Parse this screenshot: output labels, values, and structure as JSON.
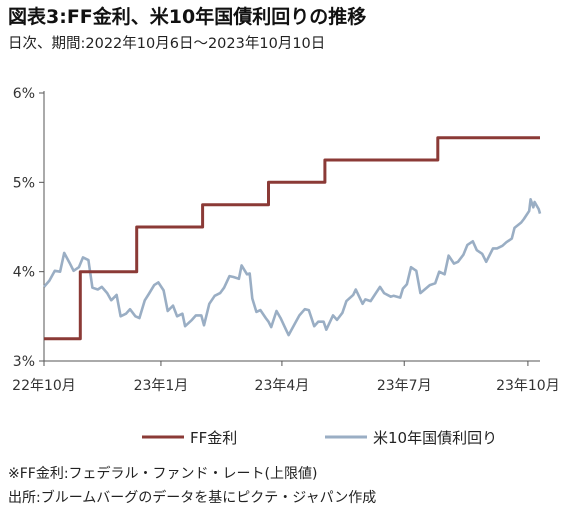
{
  "title": "図表3:FF金利、米10年国債利回りの推移",
  "subtitle": "日次、期間:2022年10月6日～2023年10月10日",
  "notes": [
    "※FF金利:フェデラル・ファンド・レート(上限値)",
    "出所:ブルームバーグのデータを基にピクテ・ジャパン作成"
  ],
  "chart_data": {
    "type": "line",
    "title": "図表3:FF金利、米10年国債利回りの推移",
    "subtitle": "日次、期間:2022年10月6日～2023年10月10日",
    "xlabel": "",
    "ylabel": "",
    "y_unit": "%",
    "ylim": [
      3,
      6
    ],
    "yticks": [
      3,
      4,
      5,
      6
    ],
    "ytick_labels": [
      "3%",
      "4%",
      "5%",
      "6%"
    ],
    "xlim": [
      "2022-10-06",
      "2023-10-10"
    ],
    "xticks": [
      "2022-10-01",
      "2023-01-01",
      "2023-04-01",
      "2023-07-01",
      "2023-10-01"
    ],
    "xtick_labels": [
      "22年10月",
      "23年1月",
      "23年4月",
      "23年7月",
      "23年10月"
    ],
    "grid": false,
    "legend": "bottom",
    "series": [
      {
        "name": "FF金利",
        "color": "#8b3a36",
        "step": true,
        "points": [
          [
            "2022-10-06",
            3.25
          ],
          [
            "2022-11-02",
            4.0
          ],
          [
            "2022-12-14",
            4.5
          ],
          [
            "2023-02-01",
            4.75
          ],
          [
            "2023-03-22",
            5.0
          ],
          [
            "2023-05-03",
            5.25
          ],
          [
            "2023-07-26",
            5.5
          ],
          [
            "2023-10-10",
            5.5
          ]
        ]
      },
      {
        "name": "米10年国債利回り",
        "color": "#9aaec4",
        "points": [
          [
            "2022-10-06",
            3.83
          ],
          [
            "2022-10-10",
            3.9
          ],
          [
            "2022-10-14",
            4.01
          ],
          [
            "2022-10-18",
            4.0
          ],
          [
            "2022-10-21",
            4.21
          ],
          [
            "2022-10-25",
            4.1
          ],
          [
            "2022-10-28",
            4.01
          ],
          [
            "2022-11-01",
            4.05
          ],
          [
            "2022-11-04",
            4.16
          ],
          [
            "2022-11-08",
            4.13
          ],
          [
            "2022-11-11",
            3.82
          ],
          [
            "2022-11-15",
            3.8
          ],
          [
            "2022-11-18",
            3.83
          ],
          [
            "2022-11-22",
            3.76
          ],
          [
            "2022-11-25",
            3.68
          ],
          [
            "2022-11-29",
            3.74
          ],
          [
            "2022-12-02",
            3.5
          ],
          [
            "2022-12-06",
            3.53
          ],
          [
            "2022-12-09",
            3.58
          ],
          [
            "2022-12-13",
            3.5
          ],
          [
            "2022-12-16",
            3.48
          ],
          [
            "2022-12-20",
            3.68
          ],
          [
            "2022-12-23",
            3.75
          ],
          [
            "2022-12-27",
            3.85
          ],
          [
            "2022-12-30",
            3.88
          ],
          [
            "2023-01-03",
            3.79
          ],
          [
            "2023-01-06",
            3.56
          ],
          [
            "2023-01-10",
            3.62
          ],
          [
            "2023-01-13",
            3.5
          ],
          [
            "2023-01-17",
            3.53
          ],
          [
            "2023-01-19",
            3.39
          ],
          [
            "2023-01-24",
            3.46
          ],
          [
            "2023-01-27",
            3.51
          ],
          [
            "2023-01-31",
            3.51
          ],
          [
            "2023-02-02",
            3.4
          ],
          [
            "2023-02-06",
            3.64
          ],
          [
            "2023-02-10",
            3.73
          ],
          [
            "2023-02-14",
            3.76
          ],
          [
            "2023-02-17",
            3.82
          ],
          [
            "2023-02-21",
            3.95
          ],
          [
            "2023-02-24",
            3.94
          ],
          [
            "2023-02-28",
            3.92
          ],
          [
            "2023-03-02",
            4.07
          ],
          [
            "2023-03-06",
            3.97
          ],
          [
            "2023-03-08",
            3.98
          ],
          [
            "2023-03-10",
            3.7
          ],
          [
            "2023-03-13",
            3.55
          ],
          [
            "2023-03-16",
            3.57
          ],
          [
            "2023-03-20",
            3.48
          ],
          [
            "2023-03-22",
            3.44
          ],
          [
            "2023-03-24",
            3.38
          ],
          [
            "2023-03-28",
            3.56
          ],
          [
            "2023-03-31",
            3.48
          ],
          [
            "2023-04-04",
            3.35
          ],
          [
            "2023-04-06",
            3.29
          ],
          [
            "2023-04-11",
            3.43
          ],
          [
            "2023-04-14",
            3.51
          ],
          [
            "2023-04-18",
            3.58
          ],
          [
            "2023-04-21",
            3.57
          ],
          [
            "2023-04-25",
            3.39
          ],
          [
            "2023-04-28",
            3.44
          ],
          [
            "2023-05-02",
            3.44
          ],
          [
            "2023-05-04",
            3.35
          ],
          [
            "2023-05-09",
            3.51
          ],
          [
            "2023-05-12",
            3.46
          ],
          [
            "2023-05-16",
            3.54
          ],
          [
            "2023-05-19",
            3.67
          ],
          [
            "2023-05-24",
            3.74
          ],
          [
            "2023-05-26",
            3.8
          ],
          [
            "2023-05-31",
            3.64
          ],
          [
            "2023-06-02",
            3.69
          ],
          [
            "2023-06-06",
            3.67
          ],
          [
            "2023-06-09",
            3.74
          ],
          [
            "2023-06-13",
            3.83
          ],
          [
            "2023-06-16",
            3.76
          ],
          [
            "2023-06-21",
            3.72
          ],
          [
            "2023-06-23",
            3.73
          ],
          [
            "2023-06-28",
            3.71
          ],
          [
            "2023-06-30",
            3.81
          ],
          [
            "2023-07-03",
            3.86
          ],
          [
            "2023-07-06",
            4.05
          ],
          [
            "2023-07-10",
            4.01
          ],
          [
            "2023-07-13",
            3.76
          ],
          [
            "2023-07-17",
            3.81
          ],
          [
            "2023-07-20",
            3.85
          ],
          [
            "2023-07-24",
            3.87
          ],
          [
            "2023-07-27",
            4.0
          ],
          [
            "2023-07-31",
            3.97
          ],
          [
            "2023-08-03",
            4.18
          ],
          [
            "2023-08-07",
            4.09
          ],
          [
            "2023-08-10",
            4.11
          ],
          [
            "2023-08-14",
            4.19
          ],
          [
            "2023-08-17",
            4.3
          ],
          [
            "2023-08-21",
            4.34
          ],
          [
            "2023-08-24",
            4.24
          ],
          [
            "2023-08-28",
            4.2
          ],
          [
            "2023-08-31",
            4.11
          ],
          [
            "2023-09-05",
            4.26
          ],
          [
            "2023-09-08",
            4.26
          ],
          [
            "2023-09-12",
            4.29
          ],
          [
            "2023-09-15",
            4.33
          ],
          [
            "2023-09-19",
            4.37
          ],
          [
            "2023-09-21",
            4.49
          ],
          [
            "2023-09-26",
            4.55
          ],
          [
            "2023-09-28",
            4.59
          ],
          [
            "2023-10-02",
            4.68
          ],
          [
            "2023-10-03",
            4.81
          ],
          [
            "2023-10-05",
            4.72
          ],
          [
            "2023-10-06",
            4.78
          ],
          [
            "2023-10-09",
            4.7
          ],
          [
            "2023-10-10",
            4.65
          ]
        ]
      }
    ]
  }
}
